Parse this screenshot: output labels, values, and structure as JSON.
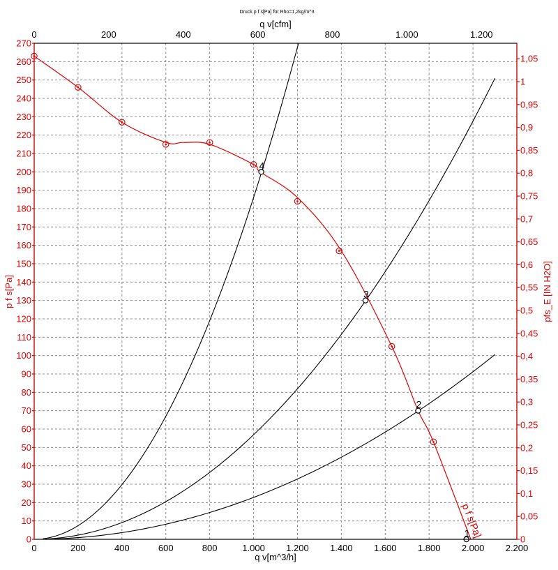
{
  "chart_data": {
    "type": "line",
    "title": "Druck p f s[Pa] für Rho=1,2kg/m^3",
    "xlabel": "q v[m^3/h]",
    "x2label": "q v[cfm]",
    "ylabel": "p f s[Pa]",
    "y2label": "pfs_E [IN H2O]",
    "xlim": [
      0,
      2200
    ],
    "ylim": [
      0,
      270
    ],
    "x2lim": [
      0,
      1294.9
    ],
    "y2lim": [
      0,
      1.0839
    ],
    "x_ticks": [
      "0",
      "200",
      "400",
      "600",
      "800",
      "1.000",
      "1.200",
      "1.400",
      "1.600",
      "1.800",
      "2.000",
      "2.200"
    ],
    "x_tick_values": [
      0,
      200,
      400,
      600,
      800,
      1000,
      1200,
      1400,
      1600,
      1800,
      2000,
      2200
    ],
    "x2_ticks": [
      "0",
      "200",
      "400",
      "600",
      "800",
      "1.000",
      "1.200"
    ],
    "x2_tick_values": [
      0,
      200,
      400,
      600,
      800,
      1000,
      1200
    ],
    "y_ticks": [
      "0",
      "10",
      "20",
      "30",
      "40",
      "50",
      "60",
      "70",
      "80",
      "90",
      "100",
      "110",
      "120",
      "130",
      "140",
      "150",
      "160",
      "170",
      "180",
      "190",
      "200",
      "210",
      "220",
      "230",
      "240",
      "250",
      "260",
      "270"
    ],
    "y_tick_values": [
      0,
      10,
      20,
      30,
      40,
      50,
      60,
      70,
      80,
      90,
      100,
      110,
      120,
      130,
      140,
      150,
      160,
      170,
      180,
      190,
      200,
      210,
      220,
      230,
      240,
      250,
      260,
      270
    ],
    "y2_ticks": [
      "0",
      "0,05",
      "0,1",
      "0,15",
      "0,2",
      "0,25",
      "0,3",
      "0,35",
      "0,4",
      "0,45",
      "0,5",
      "0,55",
      "0,6",
      "0,65",
      "0,7",
      "0,75",
      "0,8",
      "0,85",
      "0,9",
      "0,95",
      "1",
      "1,05"
    ],
    "y2_tick_values": [
      0,
      0.05,
      0.1,
      0.15,
      0.2,
      0.25,
      0.3,
      0.35,
      0.4,
      0.45,
      0.5,
      0.55,
      0.6,
      0.65,
      0.7,
      0.75,
      0.8,
      0.85,
      0.9,
      0.95,
      1.0,
      1.05
    ],
    "grid": true,
    "fan_curve": {
      "name": "p f s[Pa]",
      "color": "#e00000",
      "x": [
        0,
        200,
        400,
        600,
        680,
        800,
        1000,
        1030,
        1200,
        1400,
        1630,
        1750,
        1820,
        1990
      ],
      "y": [
        263,
        246,
        227,
        216,
        216,
        215,
        204,
        200,
        186,
        157,
        105,
        70,
        53,
        0
      ],
      "markers_x": [
        0,
        200,
        400,
        600,
        800,
        1000,
        1200,
        1390,
        1630,
        1820
      ],
      "markers_y": [
        263,
        246,
        227,
        215,
        216,
        204,
        184,
        157,
        105,
        53
      ]
    },
    "system_curves": [
      {
        "k": 0.000186,
        "x_max": 1205
      },
      {
        "k": 5.69e-05,
        "x_max": 2100
      },
      {
        "k": 2.28e-05,
        "x_max": 2100
      }
    ],
    "operating_points": [
      {
        "label": "1",
        "x": 1970,
        "y": 0
      },
      {
        "label": "2",
        "x": 1750,
        "y": 70
      },
      {
        "label": "3",
        "x": 1510,
        "y": 130
      },
      {
        "label": "4",
        "x": 1035,
        "y": 200
      }
    ]
  }
}
